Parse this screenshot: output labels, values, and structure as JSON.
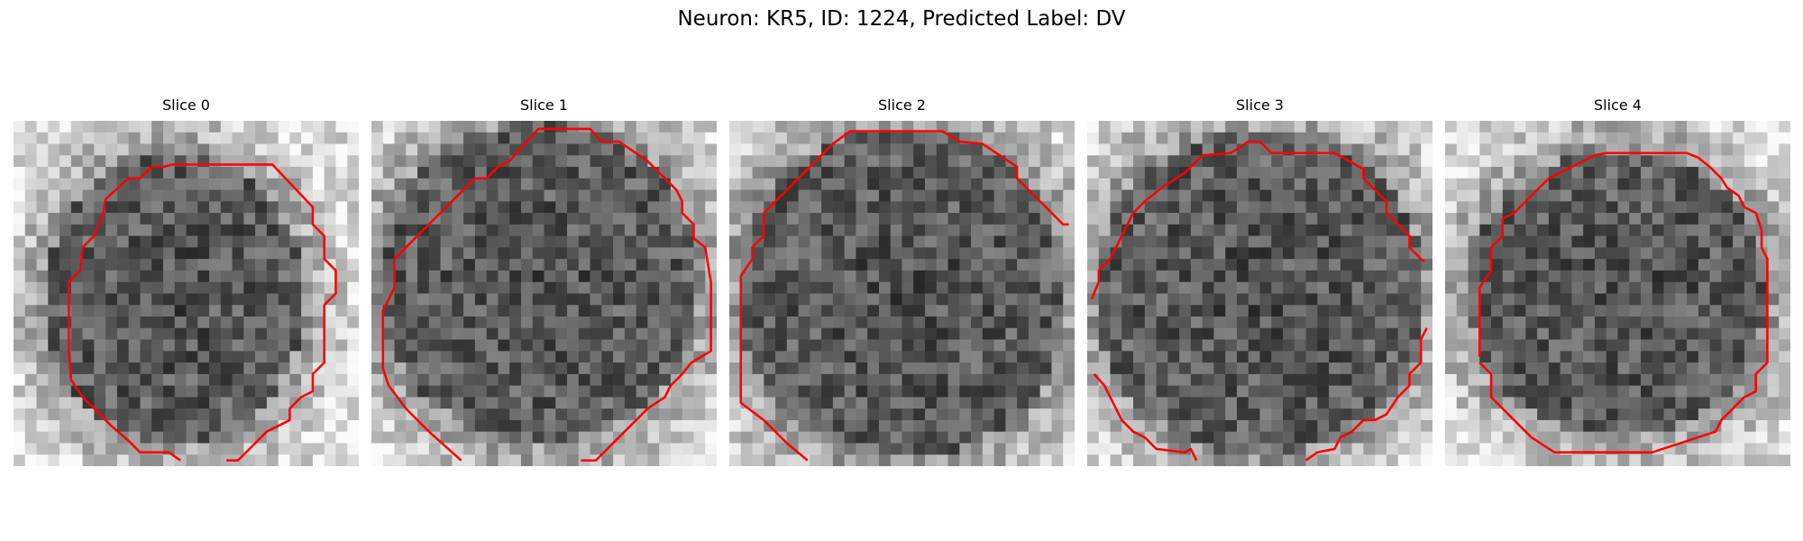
{
  "figure": {
    "title": "Neuron: KR5, ID: 1224, Predicted Label: DV"
  },
  "colors": {
    "contour": "#ff0000",
    "background": "#ffffff"
  },
  "panels": [
    {
      "title": "Slice 0"
    },
    {
      "title": "Slice 1"
    },
    {
      "title": "Slice 2"
    },
    {
      "title": "Slice 3"
    },
    {
      "title": "Slice 4"
    }
  ]
}
